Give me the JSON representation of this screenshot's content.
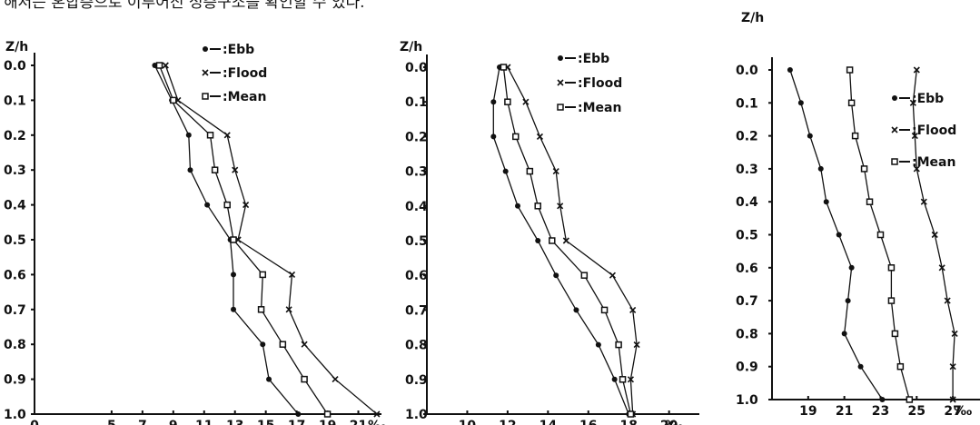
{
  "caption": "해저는 혼합층으로 이루어진 성층구조를 확인할 수 있다.",
  "chart_data": [
    {
      "type": "line",
      "ylabel": "Z/h",
      "unit": "‰",
      "y": [
        0.0,
        0.1,
        0.2,
        0.3,
        0.4,
        0.5,
        0.6,
        0.7,
        0.8,
        0.9,
        1.0
      ],
      "xlim": [
        0,
        22.5
      ],
      "xticks": [
        0,
        5,
        7,
        9,
        11,
        13,
        15,
        17,
        19,
        21
      ],
      "xtick_labels": [
        "0",
        "5",
        "7",
        "9",
        "11",
        "13",
        "15",
        "17",
        "19",
        "21"
      ],
      "yticks": [
        0.0,
        0.1,
        0.2,
        0.3,
        0.4,
        0.5,
        0.6,
        0.7,
        0.8,
        0.9,
        1.0
      ],
      "ytick_labels": [
        "0.0",
        "0.1",
        "0.2",
        "0.3",
        "0.4",
        "0.5",
        "0.6",
        "0.7",
        "0.8",
        "0.9",
        "1.0"
      ],
      "series": [
        {
          "name": "Ebb",
          "marker": "dot",
          "values": [
            7.8,
            8.9,
            10.0,
            10.1,
            11.2,
            12.7,
            12.9,
            12.9,
            14.8,
            15.2,
            17.1
          ]
        },
        {
          "name": "Flood",
          "marker": "x",
          "values": [
            8.5,
            9.3,
            12.5,
            13.0,
            13.7,
            13.2,
            16.7,
            16.5,
            17.5,
            19.5,
            22.2
          ]
        },
        {
          "name": "Mean",
          "marker": "square",
          "values": [
            8.1,
            9.0,
            11.4,
            11.7,
            12.5,
            12.9,
            14.8,
            14.7,
            16.1,
            17.5,
            19.0
          ]
        }
      ]
    },
    {
      "type": "line",
      "ylabel": "Z/h",
      "unit": "‰",
      "y": [
        0.0,
        0.1,
        0.2,
        0.3,
        0.4,
        0.5,
        0.6,
        0.7,
        0.8,
        0.9,
        1.0
      ],
      "xlim": [
        8.0,
        21.5
      ],
      "xticks": [
        10,
        12,
        14,
        16,
        18,
        20
      ],
      "xtick_labels": [
        "10",
        "12",
        "14",
        "16",
        "18",
        "20"
      ],
      "yticks": [
        0.0,
        0.1,
        0.2,
        0.3,
        0.4,
        0.5,
        0.6,
        0.7,
        0.8,
        0.9,
        1.0
      ],
      "ytick_labels": [
        "0.0",
        "0.1",
        "0.2",
        "0.3",
        "0.4",
        "0.5",
        "0.6",
        "0.7",
        "0.8",
        "0.9",
        "1.0"
      ],
      "series": [
        {
          "name": "Ebb",
          "marker": "dot",
          "values": [
            11.6,
            11.3,
            11.3,
            11.9,
            12.5,
            13.5,
            14.4,
            15.4,
            16.5,
            17.3,
            18.0
          ]
        },
        {
          "name": "Flood",
          "marker": "x",
          "values": [
            12.0,
            12.9,
            13.6,
            14.4,
            14.6,
            14.9,
            17.2,
            18.2,
            18.4,
            18.1,
            18.2
          ]
        },
        {
          "name": "Mean",
          "marker": "square",
          "values": [
            11.8,
            12.0,
            12.4,
            13.1,
            13.5,
            14.2,
            15.8,
            16.8,
            17.5,
            17.7,
            18.1
          ]
        }
      ]
    },
    {
      "type": "line",
      "ylabel": "Z/h",
      "unit": "‰",
      "y": [
        0.0,
        0.1,
        0.2,
        0.3,
        0.4,
        0.5,
        0.6,
        0.7,
        0.8,
        0.9,
        1.0
      ],
      "xlim": [
        17.0,
        28.5
      ],
      "xticks": [
        19,
        21,
        23,
        25,
        27
      ],
      "xtick_labels": [
        "19",
        "21",
        "23",
        "25",
        "27"
      ],
      "yticks": [
        0.0,
        0.1,
        0.2,
        0.3,
        0.4,
        0.5,
        0.6,
        0.7,
        0.8,
        0.9,
        1.0
      ],
      "ytick_labels": [
        "0.0",
        "0.1",
        "0.2",
        "0.3",
        "0.4",
        "0.5",
        "0.6",
        "0.7",
        "0.8",
        "0.9",
        "1.0"
      ],
      "series": [
        {
          "name": "Ebb",
          "marker": "dot",
          "values": [
            18.0,
            18.6,
            19.1,
            19.7,
            20.0,
            20.7,
            21.4,
            21.2,
            21.0,
            21.9,
            23.1
          ]
        },
        {
          "name": "Flood",
          "marker": "x",
          "values": [
            25.0,
            24.8,
            24.9,
            25.0,
            25.4,
            26.0,
            26.4,
            26.7,
            27.1,
            27.0,
            27.0
          ]
        },
        {
          "name": "Mean",
          "marker": "square",
          "values": [
            21.3,
            21.4,
            21.6,
            22.1,
            22.4,
            23.0,
            23.6,
            23.6,
            23.8,
            24.1,
            24.6
          ]
        }
      ]
    }
  ]
}
